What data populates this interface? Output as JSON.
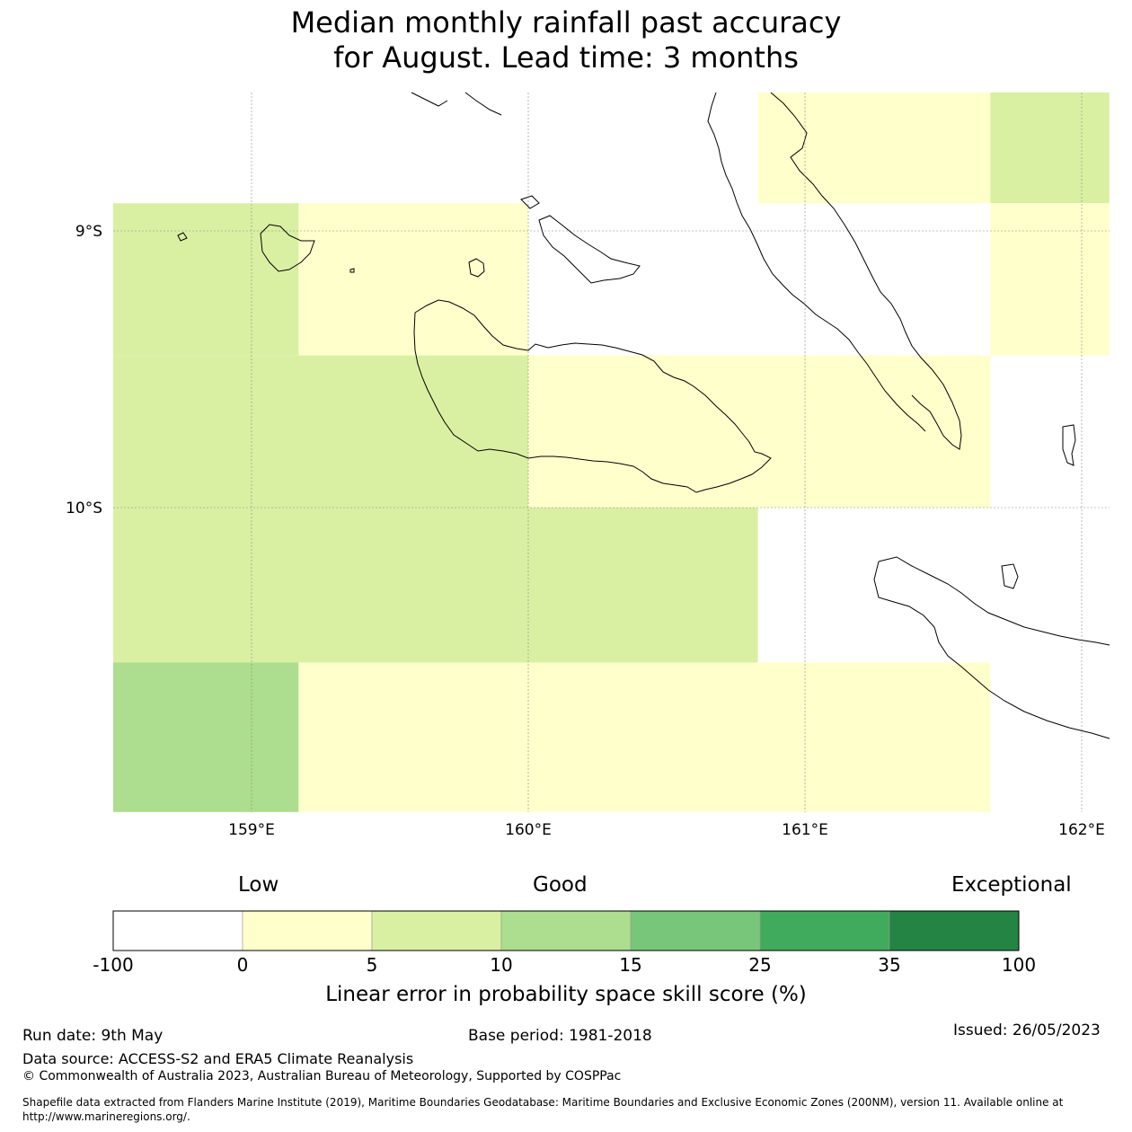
{
  "title_line1": "Median monthly rainfall past accuracy",
  "title_line2": "for August. Lead time: 3 months",
  "map": {
    "lat_labels": [
      "9°S",
      "10°S"
    ],
    "lon_labels": [
      "159°E",
      "160°E",
      "161°E",
      "162°E"
    ],
    "cells": [
      {
        "lon": [
          160.83,
          161.67
        ],
        "lat": [
          -8.5,
          -8.9
        ],
        "category": 1
      },
      {
        "lon": [
          161.67,
          162.1
        ],
        "lat": [
          -8.5,
          -8.9
        ],
        "category": 2
      },
      {
        "lon": [
          158.5,
          159.17
        ],
        "lat": [
          -8.9,
          -9.45
        ],
        "category": 2
      },
      {
        "lon": [
          159.17,
          160.0
        ],
        "lat": [
          -8.9,
          -9.45
        ],
        "category": 1
      },
      {
        "lon": [
          161.67,
          162.1
        ],
        "lat": [
          -8.9,
          -9.45
        ],
        "category": 1
      },
      {
        "lon": [
          158.5,
          160.0
        ],
        "lat": [
          -9.45,
          -10.0
        ],
        "category": 2
      },
      {
        "lon": [
          160.0,
          161.67
        ],
        "lat": [
          -9.45,
          -10.0
        ],
        "category": 1
      },
      {
        "lon": [
          158.5,
          160.83
        ],
        "lat": [
          -10.0,
          -10.56
        ],
        "category": 2
      },
      {
        "lon": [
          158.5,
          159.17
        ],
        "lat": [
          -10.56,
          -11.1
        ],
        "category": 3
      },
      {
        "lon": [
          159.17,
          161.67
        ],
        "lat": [
          -10.56,
          -11.1
        ],
        "category": 1
      }
    ]
  },
  "colorbar": {
    "qualitative": [
      "Low",
      "Good",
      "Exceptional"
    ],
    "bounds": [
      "-100",
      "0",
      "5",
      "10",
      "15",
      "25",
      "35",
      "100"
    ],
    "colors": [
      "#ffffff",
      "#ffffcc",
      "#d9f0a3",
      "#addd8e",
      "#78c679",
      "#41ab5d",
      "#238443"
    ],
    "label": "Linear error in probability space skill score (%)"
  },
  "footer": {
    "run_date": "Run date: 9th May",
    "base_period": "Base period: 1981-2018",
    "issued": "Issued: 26/05/2023",
    "data_source": "Data source: ACCESS-S2 and ERA5 Climate Reanalysis",
    "copyright": "© Commonwealth of Australia 2023, Australian Bureau of Meteorology, Supported by COSPPac",
    "shapefile_line1": "Shapefile data extracted from Flanders Marine Institute (2019), Maritime Boundaries Geodatabase: Maritime Boundaries and Exclusive Economic Zones (200NM), version 11. Available online at",
    "shapefile_line2": "http://www.marineregions.org/."
  }
}
